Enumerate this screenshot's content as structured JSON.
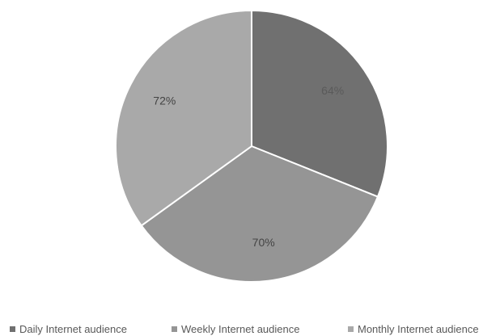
{
  "chart_data": {
    "type": "pie",
    "slices": [
      {
        "label": "Daily Internet audience",
        "value": 64,
        "value_label": "64%",
        "color": "#707070",
        "label_color": "#5a5a5a"
      },
      {
        "label": "Weekly Internet audience",
        "value": 70,
        "value_label": "70%",
        "color": "#959595",
        "label_color": "#444444"
      },
      {
        "label": "Monthly Internet audience",
        "value": 72,
        "value_label": "72%",
        "color": "#a9a9a9",
        "label_color": "#444444"
      }
    ],
    "start": "12 o'clock",
    "direction": "clockwise",
    "legend_position": "bottom",
    "title": ""
  }
}
